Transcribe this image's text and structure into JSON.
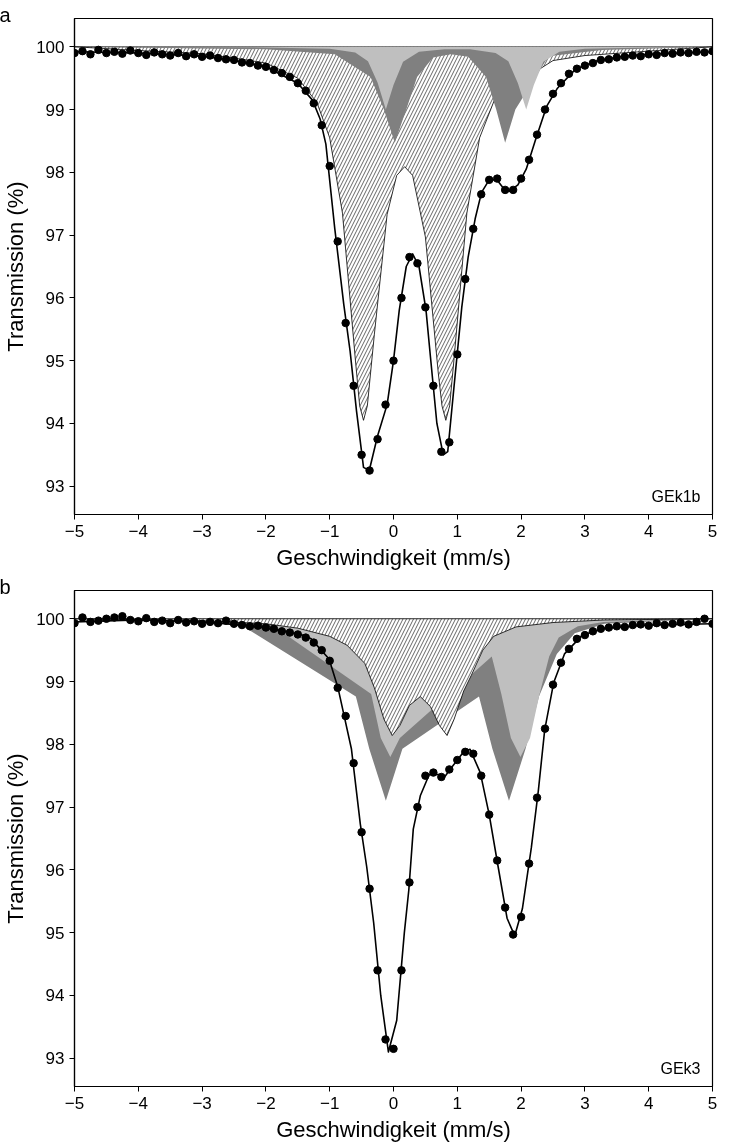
{
  "chart_data": [
    {
      "type": "scatter",
      "xlabel": "Geschwindigkeit (mm/s)",
      "ylabel": "Transmission (%)",
      "annotations": [
        "a",
        "GEk1b"
      ],
      "xlim": [
        -5,
        5
      ],
      "ylim": [
        92.55,
        100.45
      ],
      "xticks": [
        -5,
        -4,
        -3,
        -2,
        -1,
        0,
        1,
        2,
        3,
        4,
        5
      ],
      "yticks": [
        93,
        94,
        95,
        96,
        97,
        98,
        99,
        100
      ],
      "grid": false,
      "line_style": "solid",
      "series": [
        {
          "type": "area",
          "color": "#000000",
          "x": [
            -5,
            -4,
            -3,
            -2.5,
            -2,
            -1.5,
            -1.2,
            -1,
            -0.8,
            -0.6,
            -0.53,
            -0.47,
            -0.41,
            -0.3,
            -0.1,
            0.05,
            0.175,
            0.3,
            0.5,
            0.7,
            0.76,
            0.82,
            0.88,
            0.95,
            1.15,
            1.35,
            1.6,
            2,
            2.5,
            3,
            4,
            5
          ],
          "values": [
            100.0,
            99.94,
            99.89,
            99.82,
            99.74,
            99.5,
            99.11,
            98.55,
            97.35,
            95.04,
            94.28,
            94.05,
            94.28,
            95.42,
            97.33,
            97.95,
            98.09,
            97.95,
            96.97,
            94.82,
            94.28,
            94.05,
            94.28,
            95.04,
            97.35,
            98.55,
            99.2,
            null,
            99.78,
            99.86,
            99.93,
            100.0
          ]
        },
        {
          "type": "area",
          "color": "#808080",
          "x": [
            -5,
            -2,
            -0.92,
            -0.36,
            -0.15,
            0.02,
            0.2,
            0.37,
            0.62,
            0.9,
            1.17,
            1.45,
            1.61,
            1.75,
            1.91,
            2.08,
            2.43,
            3.27,
            5
          ],
          "values": [
            100.0,
            99.96,
            99.88,
            99.52,
            99.0,
            98.47,
            99.0,
            99.52,
            99.83,
            99.88,
            99.84,
            99.52,
            99.0,
            98.47,
            99.0,
            null,
            99.85,
            99.95,
            100.0
          ]
        },
        {
          "type": "area",
          "color": "#bfbfbf",
          "x": [
            -5,
            -2,
            -1,
            -0.6,
            -0.4,
            -0.25,
            -0.12,
            0,
            0.15,
            0.4,
            0.8,
            1.2,
            1.6,
            1.8,
            1.95,
            2.08,
            2.2,
            2.35,
            2.6,
            3,
            4,
            5
          ],
          "values": [
            100.0,
            99.99,
            99.97,
            99.91,
            99.77,
            99.43,
            99.0,
            99.39,
            99.76,
            99.92,
            99.96,
            99.96,
            99.9,
            99.77,
            99.42,
            99.0,
            99.39,
            99.76,
            99.92,
            99.97,
            99.99,
            100.0
          ]
        },
        {
          "marker": "circle",
          "color": "#000000",
          "x": [
            -5,
            -4.875,
            -4.75,
            -4.625,
            -4.5,
            -4.375,
            -4.25,
            -4.125,
            -4,
            -3.875,
            -3.75,
            -3.625,
            -3.5,
            -3.375,
            -3.25,
            -3.125,
            -3,
            -2.875,
            -2.75,
            -2.625,
            -2.5,
            -2.375,
            -2.25,
            -2.125,
            -2,
            -1.875,
            -1.75,
            -1.625,
            -1.5,
            -1.375,
            -1.25,
            -1.125,
            -1,
            -0.875,
            -0.75,
            -0.625,
            -0.5,
            -0.375,
            -0.25,
            -0.125,
            0,
            0.125,
            0.25,
            0.375,
            0.5,
            0.625,
            0.75,
            0.875,
            1,
            1.125,
            1.25,
            1.375,
            1.5,
            1.625,
            1.75,
            1.875,
            2,
            2.125,
            2.25,
            2.375,
            2.5,
            2.625,
            2.75,
            2.875,
            3,
            3.125,
            3.25,
            3.375,
            3.5,
            3.625,
            3.75,
            3.875,
            4,
            4.125,
            4.25,
            4.375,
            4.5,
            4.625,
            4.75,
            4.875,
            5
          ],
          "values": [
            99.9,
            99.93,
            99.88,
            99.95,
            99.9,
            99.92,
            99.89,
            99.94,
            99.9,
            99.87,
            99.91,
            99.88,
            99.86,
            99.9,
            99.85,
            99.88,
            99.84,
            99.86,
            99.82,
            99.8,
            99.79,
            99.75,
            99.74,
            99.7,
            99.68,
            99.63,
            99.58,
            99.52,
            99.42,
            99.3,
            99.1,
            98.75,
            98.1,
            96.9,
            95.6,
            94.6,
            93.5,
            93.25,
            93.75,
            94.3,
            95.0,
            96.0,
            96.65,
            96.55,
            95.85,
            94.6,
            93.55,
            93.7,
            95.1,
            96.3,
            97.1,
            97.65,
            97.88,
            97.9,
            97.72,
            97.72,
            97.9,
            98.2,
            98.6,
            99.0,
            99.25,
            99.42,
            99.57,
            99.65,
            99.7,
            99.74,
            99.79,
            99.8,
            99.83,
            99.84,
            99.86,
            99.85,
            99.88,
            99.87,
            99.9,
            99.89,
            99.91,
            99.9,
            99.92,
            99.91,
            99.93
          ]
        },
        {
          "type": "line",
          "color": "#000000",
          "x": [
            -5,
            -4,
            -3,
            -2.5,
            -2,
            -1.5,
            -1.27,
            -1.15,
            -1.06,
            -0.92,
            -0.78,
            -0.68,
            -0.58,
            -0.47,
            -0.38,
            -0.25,
            -0.1,
            0,
            0.09,
            0.2,
            0.3,
            0.4,
            0.51,
            0.58,
            0.68,
            0.78,
            0.85,
            0.95,
            1.07,
            1.17,
            1.28,
            1.38,
            1.5,
            1.62,
            1.72,
            1.82,
            1.95,
            2.08,
            2.22,
            2.4,
            2.57,
            2.85,
            3.2,
            3.6,
            4,
            5
          ],
          "values": [
            99.92,
            99.9,
            99.85,
            99.78,
            99.68,
            99.42,
            99.15,
            98.85,
            98.45,
            97.1,
            95.9,
            95.15,
            94.2,
            93.3,
            93.25,
            93.8,
            94.3,
            95.0,
            95.8,
            96.5,
            96.7,
            96.5,
            95.8,
            95.05,
            94.0,
            93.5,
            93.55,
            94.6,
            95.85,
            96.65,
            97.26,
            97.68,
            97.88,
            97.88,
            97.75,
            97.7,
            97.8,
            98.05,
            98.5,
            99.05,
            99.34,
            99.64,
            99.78,
            99.85,
            99.88,
            99.92
          ]
        }
      ]
    },
    {
      "type": "scatter",
      "xlabel": "Geschwindigkeit (mm/s)",
      "ylabel": "Transmission (%)",
      "annotations": [
        "b",
        "GEk3"
      ],
      "xlim": [
        -5,
        5
      ],
      "ylim": [
        92.55,
        100.45
      ],
      "xticks": [
        -5,
        -4,
        -3,
        -2,
        -1,
        0,
        1,
        2,
        3,
        4,
        5
      ],
      "yticks": [
        93,
        94,
        95,
        96,
        97,
        98,
        99,
        100
      ],
      "grid": false,
      "line_style": "solid",
      "series": [
        {
          "type": "area",
          "color": "#808080",
          "x": [
            -5,
            -2.5,
            -1.62,
            -1.15,
            -0.87,
            -0.59,
            -0.38,
            -0.12,
            0.14,
            0.35,
            0.63,
            0.85,
            1.06,
            1.34,
            1.55,
            1.81,
            2.07,
            2.28,
            2.56,
            2.84,
            3.31,
            4.3,
            5
          ],
          "values": [
            100.0,
            99.97,
            null,
            null,
            null,
            98.76,
            97.93,
            97.1,
            97.93,
            null,
            null,
            null,
            null,
            98.76,
            97.93,
            97.1,
            97.93,
            98.76,
            99.44,
            99.77,
            99.92,
            99.97,
            100.0
          ]
        },
        {
          "type": "area",
          "color": "#bfbfbf",
          "x": [
            -5,
            -2,
            -1.35,
            -0.95,
            -0.65,
            -0.5,
            -0.35,
            -0.2,
            -0.05,
            0.1,
            0.25,
            0.4,
            0.55,
            0.85,
            0.97,
            1.09,
            1.39,
            1.54,
            1.69,
            1.84,
            1.99,
            2.14,
            2.29,
            2.44,
            2.59,
            2.89,
            3.29,
            5
          ],
          "values": [
            100.0,
            99.97,
            null,
            null,
            null,
            null,
            98.8,
            98.1,
            97.8,
            98.1,
            null,
            null,
            null,
            null,
            null,
            null,
            null,
            99.4,
            98.8,
            98.1,
            97.8,
            98.1,
            98.8,
            99.4,
            99.7,
            99.88,
            99.95,
            100.0
          ]
        },
        {
          "type": "area",
          "color": "#000000",
          "x": [
            -5,
            -3,
            -2,
            -1.5,
            -1.0,
            -0.73,
            -0.45,
            -0.3,
            -0.15,
            -0.02,
            0.1,
            0.25,
            0.42,
            0.58,
            0.72,
            0.84,
            0.95,
            1.1,
            1.22,
            1.4,
            1.57,
            1.92,
            2.5,
            3.3,
            5
          ],
          "values": [
            100.0,
            99.97,
            99.92,
            99.85,
            99.72,
            99.58,
            99.29,
            98.9,
            98.4,
            98.14,
            98.3,
            98.62,
            98.76,
            98.6,
            98.3,
            98.14,
            98.4,
            98.85,
            99.1,
            99.5,
            99.72,
            99.87,
            99.94,
            99.98,
            100.0
          ]
        },
        {
          "marker": "circle",
          "color": "#000000",
          "x": [
            -5,
            -4.875,
            -4.75,
            -4.625,
            -4.5,
            -4.375,
            -4.25,
            -4.125,
            -4,
            -3.875,
            -3.75,
            -3.625,
            -3.5,
            -3.375,
            -3.25,
            -3.125,
            -3,
            -2.875,
            -2.75,
            -2.625,
            -2.5,
            -2.375,
            -2.25,
            -2.125,
            -2,
            -1.875,
            -1.75,
            -1.625,
            -1.5,
            -1.375,
            -1.25,
            -1.125,
            -1,
            -0.875,
            -0.75,
            -0.625,
            -0.5,
            -0.375,
            -0.25,
            -0.125,
            0,
            0.125,
            0.25,
            0.375,
            0.5,
            0.625,
            0.75,
            0.875,
            1,
            1.125,
            1.25,
            1.375,
            1.5,
            1.625,
            1.75,
            1.875,
            2,
            2.125,
            2.25,
            2.375,
            2.5,
            2.625,
            2.75,
            2.875,
            3,
            3.125,
            3.25,
            3.375,
            3.5,
            3.625,
            3.75,
            3.875,
            4,
            4.125,
            4.25,
            4.375,
            4.5,
            4.625,
            4.75,
            4.875,
            5
          ],
          "values": [
            99.93,
            100.02,
            99.95,
            99.97,
            100.0,
            100.02,
            100.04,
            99.98,
            99.96,
            100.01,
            99.95,
            99.97,
            99.93,
            99.98,
            99.94,
            99.96,
            99.92,
            99.95,
            99.93,
            99.97,
            99.92,
            99.9,
            99.88,
            99.89,
            99.86,
            99.84,
            99.8,
            99.78,
            99.75,
            99.7,
            99.62,
            99.5,
            99.33,
            98.9,
            98.45,
            97.7,
            96.6,
            95.7,
            94.4,
            93.3,
            93.15,
            94.4,
            95.8,
            97.0,
            97.5,
            97.55,
            97.48,
            97.6,
            97.75,
            97.88,
            97.85,
            97.5,
            96.88,
            96.15,
            95.4,
            94.97,
            95.25,
            96.1,
            97.15,
            98.25,
            98.95,
            99.3,
            99.52,
            99.68,
            99.74,
            99.8,
            99.84,
            99.86,
            99.88,
            99.87,
            99.9,
            99.91,
            99.89,
            99.93,
            99.9,
            99.92,
            99.94,
            99.91,
            99.95,
            100.0,
            99.92
          ]
        },
        {
          "type": "line",
          "color": "#000000",
          "x": [
            -5,
            -4,
            -3,
            -2.27,
            -1.71,
            -1.43,
            -1.29,
            -1.01,
            -0.87,
            -0.66,
            -0.52,
            -0.42,
            -0.31,
            -0.2,
            -0.08,
            0.05,
            0.17,
            0.24,
            0.31,
            0.42,
            0.56,
            0.7,
            0.8,
            0.94,
            1.1,
            1.2,
            1.36,
            1.5,
            1.64,
            1.78,
            1.9,
            2.02,
            2.16,
            2.27,
            2.37,
            2.51,
            2.68,
            2.96,
            3.31,
            4,
            5
          ],
          "values": [
            99.95,
            99.98,
            99.95,
            99.89,
            99.8,
            99.74,
            99.68,
            99.36,
            98.9,
            97.93,
            96.73,
            96.05,
            95.15,
            94.0,
            93.1,
            93.6,
            95.0,
            95.68,
            96.65,
            97.18,
            97.52,
            97.52,
            97.48,
            97.67,
            97.88,
            97.92,
            97.55,
            96.88,
            96.05,
            95.23,
            94.95,
            95.38,
            96.35,
            97.26,
            98.23,
            98.98,
            99.44,
            99.74,
            99.85,
            99.9,
            99.92
          ]
        }
      ]
    }
  ]
}
